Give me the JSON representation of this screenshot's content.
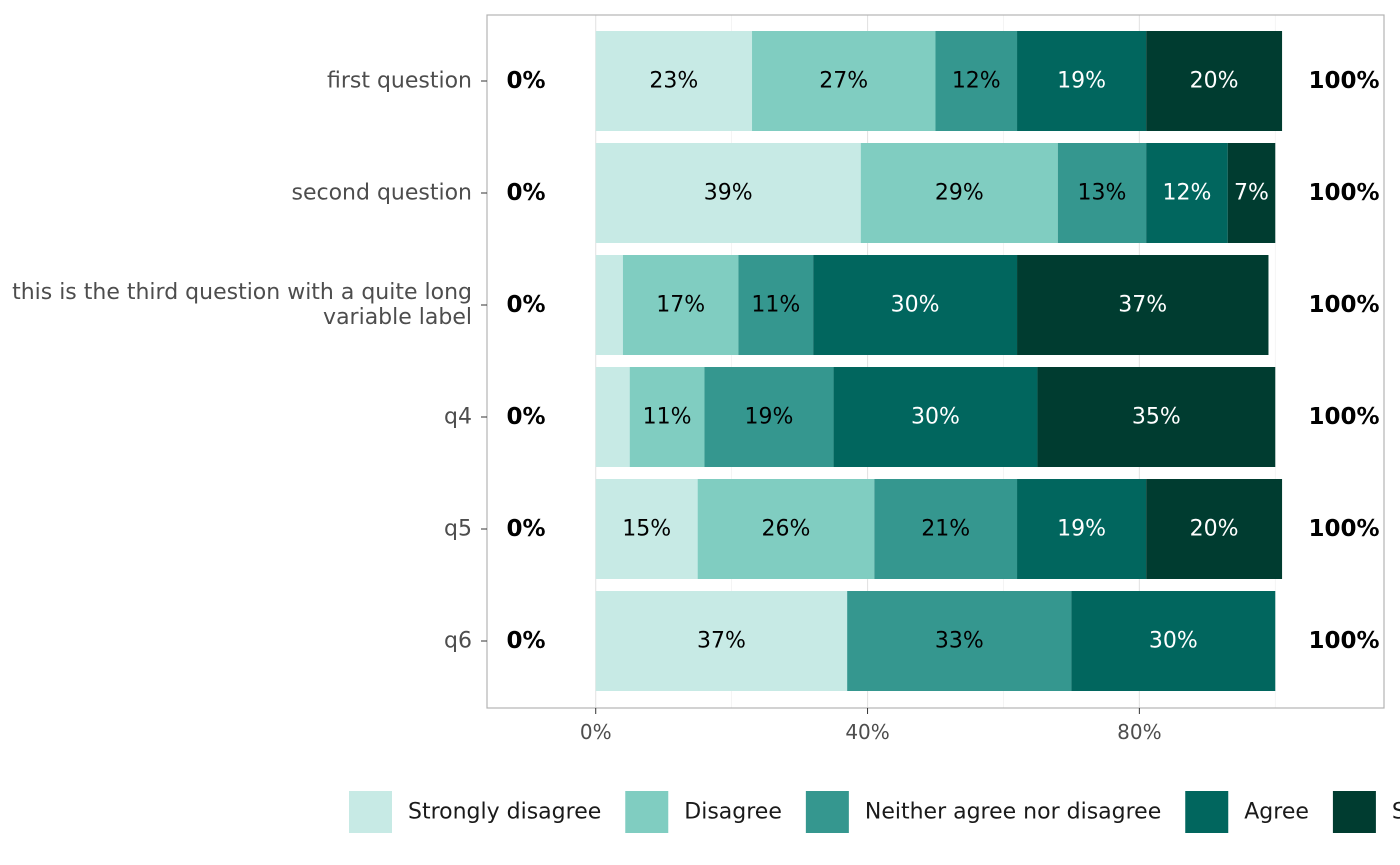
{
  "chart_data": {
    "type": "bar",
    "orientation": "horizontal",
    "stacked": true,
    "categories": [
      [
        "first question"
      ],
      [
        "second question"
      ],
      [
        "this is the third question with a quite long",
        "variable label"
      ],
      [
        "q4"
      ],
      [
        "q5"
      ],
      [
        "q6"
      ]
    ],
    "series": [
      {
        "name": "Strongly disagree",
        "color": "#c7eae5",
        "label_color": "#000000",
        "values": [
          23,
          39,
          4,
          5,
          15,
          37
        ],
        "labels": [
          "23%",
          "39%",
          "",
          "",
          "15%",
          "37%"
        ]
      },
      {
        "name": "Disagree",
        "color": "#80cdc1",
        "label_color": "#000000",
        "values": [
          27,
          29,
          17,
          11,
          26,
          0
        ],
        "labels": [
          "27%",
          "29%",
          "17%",
          "11%",
          "26%",
          ""
        ]
      },
      {
        "name": "Neither agree nor disagree",
        "color": "#35978f",
        "label_color": "#000000",
        "values": [
          12,
          13,
          11,
          19,
          21,
          33
        ],
        "labels": [
          "12%",
          "13%",
          "11%",
          "19%",
          "21%",
          "33%"
        ]
      },
      {
        "name": "Agree",
        "color": "#01665e",
        "label_color": "#ffffff",
        "values": [
          19,
          12,
          30,
          30,
          19,
          30
        ],
        "labels": [
          "19%",
          "12%",
          "30%",
          "30%",
          "19%",
          "30%"
        ]
      },
      {
        "name": "Strongly agree",
        "color": "#003c30",
        "label_color": "#ffffff",
        "values": [
          20,
          7,
          37,
          35,
          20,
          0
        ],
        "labels": [
          "20%",
          "7%",
          "37%",
          "35%",
          "20%",
          ""
        ]
      }
    ],
    "left_totals": [
      "0%",
      "0%",
      "0%",
      "0%",
      "0%",
      "0%"
    ],
    "right_totals": [
      "100%",
      "100%",
      "100%",
      "100%",
      "100%",
      "100%"
    ],
    "x_ticks": [
      {
        "value": 0,
        "label": "0%"
      },
      {
        "value": 40,
        "label": "40%"
      },
      {
        "value": 80,
        "label": "80%"
      }
    ],
    "xlim": [
      -16,
      116
    ],
    "xlabel": "",
    "ylabel": "",
    "grid": true,
    "legend_position": "bottom"
  }
}
